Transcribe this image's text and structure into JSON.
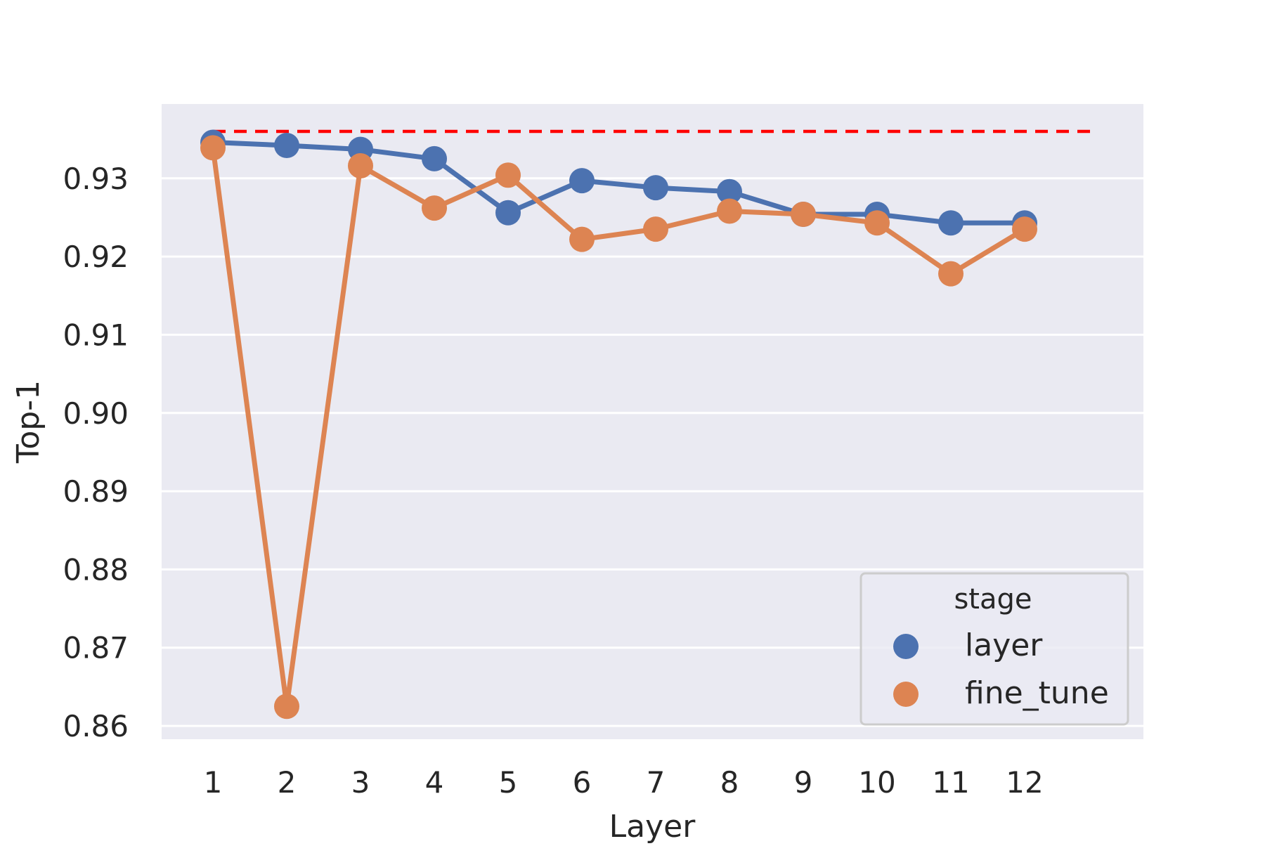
{
  "chart_data": {
    "type": "line",
    "title": "",
    "xlabel": "Layer",
    "ylabel": "Top-1",
    "categories": [
      "1",
      "2",
      "3",
      "4",
      "5",
      "6",
      "7",
      "8",
      "9",
      "10",
      "11",
      "12"
    ],
    "yticks": [
      "0.86",
      "0.87",
      "0.88",
      "0.89",
      "0.90",
      "0.91",
      "0.92",
      "0.93"
    ],
    "ylim": [
      0.8583,
      0.9395
    ],
    "grid": true,
    "legend": {
      "title": "stage",
      "placement": "bottom-right"
    },
    "series": [
      {
        "name": "layer",
        "color": "#4c72b0",
        "values": [
          0.9346,
          0.9342,
          0.9337,
          0.9325,
          0.9256,
          0.9297,
          0.9288,
          0.9283,
          0.9254,
          0.9254,
          0.9243,
          0.9243
        ]
      },
      {
        "name": "fine_tune",
        "color": "#dd8452",
        "values": [
          0.9339,
          0.8625,
          0.9316,
          0.9262,
          0.9304,
          0.9222,
          0.9235,
          0.9258,
          0.9254,
          0.9243,
          0.9178,
          0.9235
        ]
      }
    ],
    "reference_line": {
      "value": 0.936,
      "color": "#ff0000",
      "style": "dashed"
    },
    "background_color": "#eaeaf2"
  }
}
